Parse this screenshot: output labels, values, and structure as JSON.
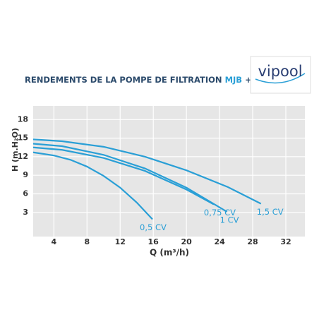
{
  "chart_data": {
    "type": "line",
    "title_parts": [
      "RENDEMENTS DE LA POMPE DE FILTRATION",
      "MJB",
      "+ ACIS"
    ],
    "logo": "vipool",
    "x_label": "Q (m³/h)",
    "y_label": "H (m.H₂O)",
    "xlim": [
      1.5,
      34.3
    ],
    "xticks": [
      4,
      8,
      12,
      16,
      20,
      24,
      28,
      32
    ],
    "ylim": [
      -0.9,
      20.2
    ],
    "yticks": [
      3,
      6,
      9,
      12,
      15,
      18
    ],
    "grid": true,
    "series": [
      {
        "name": "0,5 CV",
        "color": "#2a9fd6",
        "x": [
          1.5,
          4,
          6,
          8,
          10,
          12,
          14,
          15.9
        ],
        "values": [
          12.7,
          12.2,
          11.5,
          10.4,
          8.9,
          7.0,
          4.6,
          1.9
        ]
      },
      {
        "name": "0,75 CV",
        "color": "#2a9fd6",
        "x": [
          1.5,
          5,
          10,
          15,
          20,
          23.3
        ],
        "values": [
          13.5,
          13.1,
          11.8,
          9.7,
          6.7,
          4.3
        ]
      },
      {
        "name": "1 CV",
        "color": "#2a9fd6",
        "x": [
          1.5,
          5,
          10,
          15,
          20,
          24.9
        ],
        "values": [
          14.1,
          13.7,
          12.3,
          10.1,
          7.0,
          3.1
        ]
      },
      {
        "name": "1,5 CV",
        "color": "#2a9fd6",
        "x": [
          1.5,
          5,
          10,
          15,
          20,
          25,
          29
        ],
        "values": [
          14.8,
          14.5,
          13.6,
          12.0,
          9.8,
          7.1,
          4.4
        ]
      }
    ]
  }
}
